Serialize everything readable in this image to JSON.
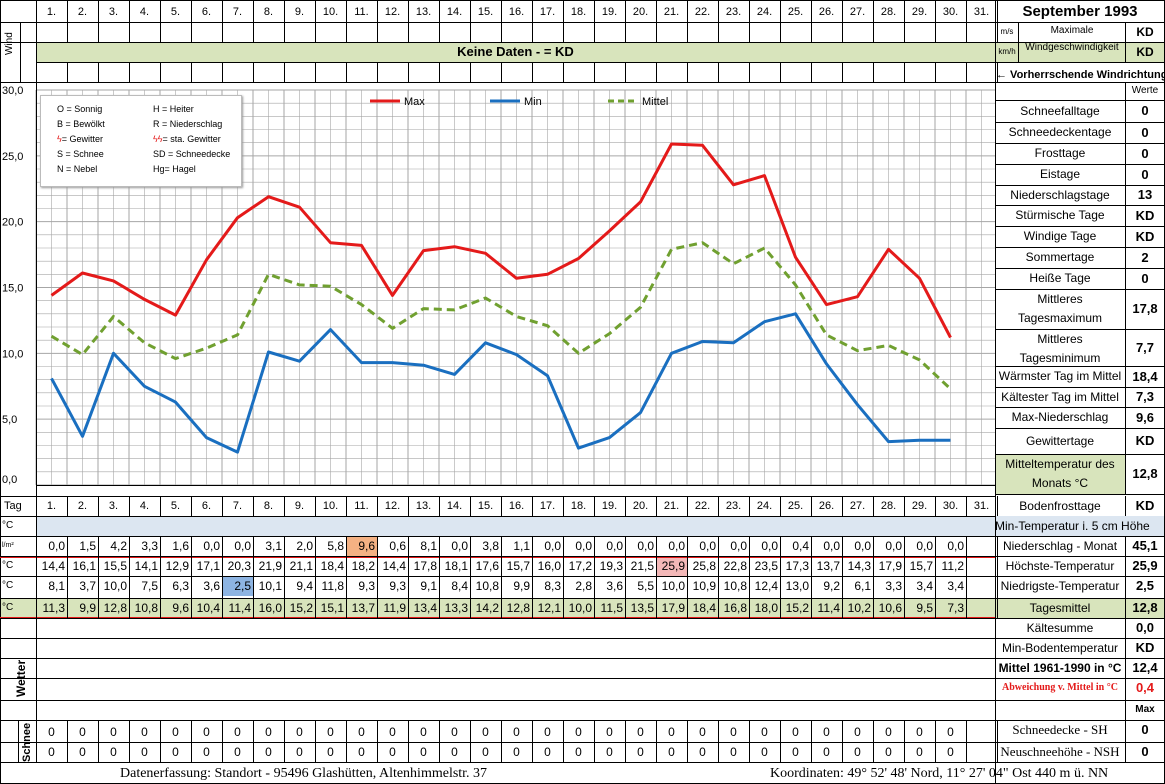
{
  "title": "September 1993",
  "day_header_label": "Tag",
  "days": [
    "1.",
    "2.",
    "3.",
    "4.",
    "5.",
    "6.",
    "7.",
    "8.",
    "9.",
    "10.",
    "11.",
    "12.",
    "13.",
    "14.",
    "15.",
    "16.",
    "17.",
    "18.",
    "19.",
    "20.",
    "21.",
    "22.",
    "23.",
    "24.",
    "25.",
    "26.",
    "27.",
    "28.",
    "29.",
    "30.",
    "31."
  ],
  "wind": {
    "label": "Wind",
    "banner": "Keine Daten -  = KD",
    "units": [
      "m/s",
      "km/h"
    ],
    "max_label_1": "Maximale",
    "max_label_2": "Windgeschwindigkeit",
    "max_values": [
      "KD",
      "KD"
    ],
    "direction_label": "← Vorherrschende Windrichtung"
  },
  "legend": {
    "items": [
      [
        "O = Sonnig",
        "H = Heiter"
      ],
      [
        "B = Bewölkt",
        "R = Niederschlag"
      ],
      [
        "= Gewitter",
        "= sta. Gewitter"
      ],
      [
        "S = Schnee",
        "SD = Schneedecke"
      ],
      [
        "N = Nebel",
        "Hg= Hagel"
      ]
    ],
    "storm_symbol": "ϟ",
    "storm_symbol_double": "ϟϟ"
  },
  "chart_data": {
    "type": "line",
    "x": [
      "1.",
      "2.",
      "3.",
      "4.",
      "5.",
      "6.",
      "7.",
      "8.",
      "9.",
      "10.",
      "11.",
      "12.",
      "13.",
      "14.",
      "15.",
      "16.",
      "17.",
      "18.",
      "19.",
      "20.",
      "21.",
      "22.",
      "23.",
      "24.",
      "25.",
      "26.",
      "27.",
      "28.",
      "29.",
      "30."
    ],
    "ylim": [
      0,
      30
    ],
    "yticks": [
      "0,0",
      "5,0",
      "10,0",
      "15,0",
      "20,0",
      "25,0",
      "30,0"
    ],
    "grid": true,
    "series": [
      {
        "name": "Max",
        "color": "#e41a1a",
        "style": "solid",
        "values": [
          14.4,
          16.1,
          15.5,
          14.1,
          12.9,
          17.1,
          20.3,
          21.9,
          21.1,
          18.4,
          18.2,
          14.4,
          17.8,
          18.1,
          17.6,
          15.7,
          16.0,
          17.2,
          19.3,
          21.5,
          25.9,
          25.8,
          22.8,
          23.5,
          17.3,
          13.7,
          14.3,
          17.9,
          15.7,
          11.2
        ]
      },
      {
        "name": "Min",
        "color": "#1a6fc0",
        "style": "solid",
        "values": [
          8.1,
          3.7,
          10.0,
          7.5,
          6.3,
          3.6,
          2.5,
          10.1,
          9.4,
          11.8,
          9.3,
          9.3,
          9.1,
          8.4,
          10.8,
          9.9,
          8.3,
          2.8,
          3.6,
          5.5,
          10.0,
          10.9,
          10.8,
          12.4,
          13.0,
          9.2,
          6.1,
          3.3,
          3.4,
          3.4
        ]
      },
      {
        "name": "Mittel",
        "color": "#70a030",
        "style": "dashed",
        "values": [
          11.3,
          9.9,
          12.8,
          10.8,
          9.6,
          10.4,
          11.4,
          16.0,
          15.2,
          15.1,
          13.7,
          11.9,
          13.4,
          13.3,
          14.2,
          12.8,
          12.1,
          10.0,
          11.5,
          13.5,
          17.9,
          18.4,
          16.8,
          18.0,
          15.2,
          11.4,
          10.2,
          10.6,
          9.5,
          7.3
        ]
      }
    ]
  },
  "table": {
    "head_units": [
      "°C",
      "l/m²",
      "°C",
      "°C",
      "°C"
    ],
    "precip": [
      "0,0",
      "1,5",
      "4,2",
      "3,3",
      "1,6",
      "0,0",
      "0,0",
      "3,1",
      "2,0",
      "5,8",
      "9,6",
      "0,6",
      "8,1",
      "0,0",
      "3,8",
      "1,1",
      "0,0",
      "0,0",
      "0,0",
      "0,0",
      "0,0",
      "0,0",
      "0,0",
      "0,0",
      "0,4",
      "0,0",
      "0,0",
      "0,0",
      "0,0",
      "0,0"
    ],
    "max": [
      "14,4",
      "16,1",
      "15,5",
      "14,1",
      "12,9",
      "17,1",
      "20,3",
      "21,9",
      "21,1",
      "18,4",
      "18,2",
      "14,4",
      "17,8",
      "18,1",
      "17,6",
      "15,7",
      "16,0",
      "17,2",
      "19,3",
      "21,5",
      "25,9",
      "25,8",
      "22,8",
      "23,5",
      "17,3",
      "13,7",
      "14,3",
      "17,9",
      "15,7",
      "11,2"
    ],
    "min": [
      "8,1",
      "3,7",
      "10,0",
      "7,5",
      "6,3",
      "3,6",
      "2,5",
      "10,1",
      "9,4",
      "11,8",
      "9,3",
      "9,3",
      "9,1",
      "8,4",
      "10,8",
      "9,9",
      "8,3",
      "2,8",
      "3,6",
      "5,5",
      "10,0",
      "10,9",
      "10,8",
      "12,4",
      "13,0",
      "9,2",
      "6,1",
      "3,3",
      "3,4",
      "3,4"
    ],
    "mean": [
      "11,3",
      "9,9",
      "12,8",
      "10,8",
      "9,6",
      "10,4",
      "11,4",
      "16,0",
      "15,2",
      "15,1",
      "13,7",
      "11,9",
      "13,4",
      "13,3",
      "14,2",
      "12,8",
      "12,1",
      "10,0",
      "11,5",
      "13,5",
      "17,9",
      "18,4",
      "16,8",
      "18,0",
      "15,2",
      "11,4",
      "10,2",
      "10,6",
      "9,5",
      "7,3"
    ],
    "wetter_label": "Wetter",
    "schnee_label": "Schnee",
    "snow1": [
      "0",
      "0",
      "0",
      "0",
      "0",
      "0",
      "0",
      "0",
      "0",
      "0",
      "0",
      "0",
      "0",
      "0",
      "0",
      "0",
      "0",
      "0",
      "0",
      "0",
      "0",
      "0",
      "0",
      "0",
      "0",
      "0",
      "0",
      "0",
      "0",
      "0"
    ],
    "snow2": [
      "0",
      "0",
      "0",
      "0",
      "0",
      "0",
      "0",
      "0",
      "0",
      "0",
      "0",
      "0",
      "0",
      "0",
      "0",
      "0",
      "0",
      "0",
      "0",
      "0",
      "0",
      "0",
      "0",
      "0",
      "0",
      "0",
      "0",
      "0",
      "0",
      "0"
    ],
    "highlight_colors": {
      "precip": "#f4b183",
      "max": "#f4b8b8",
      "min": "#8db4e2",
      "mean_row": "#d8e4bc",
      "band": "#dce6f1"
    }
  },
  "stats": {
    "werte_label": "Werte",
    "rows": [
      {
        "label": "Schneefalltage",
        "value": "0"
      },
      {
        "label": "Schneedeckentage",
        "value": "0"
      },
      {
        "label": "Frosttage",
        "value": "0"
      },
      {
        "label": "Eistage",
        "value": "0"
      },
      {
        "label": "Niederschlagstage",
        "value": "13"
      },
      {
        "label": "Stürmische Tage",
        "value": "KD"
      },
      {
        "label": "Windige Tage",
        "value": "KD"
      },
      {
        "label": "Sommertage",
        "value": "2"
      },
      {
        "label": "Heiße Tage",
        "value": "0"
      },
      {
        "label": "Mittleres Tagesmaximum",
        "value": "17,8"
      },
      {
        "label": "Mittleres Tagesminimum",
        "value": "7,7"
      },
      {
        "label": "Wärmster Tag im Mittel",
        "value": "18,4"
      },
      {
        "label": "Kältester Tag im Mittel",
        "value": "7,3"
      },
      {
        "label": "Max-Niederschlag",
        "value": "9,6"
      },
      {
        "label": "Gewittertage",
        "value": "KD"
      },
      {
        "label": "Mitteltemperatur des Monats °C",
        "value": "12,8"
      }
    ],
    "lower": [
      {
        "label": "Bodenfrosttage",
        "value": "KD"
      },
      {
        "label": "Min-Temperatur i. 5 cm Höhe",
        "value": ""
      },
      {
        "label": "Niederschlag - Monat",
        "value": "45,1"
      },
      {
        "label": "Höchste-Temperatur",
        "value": "25,9"
      },
      {
        "label": "Niedrigste-Temperatur",
        "value": "2,5"
      },
      {
        "label": "Tagesmittel",
        "value": "12,8"
      },
      {
        "label": "Kältesumme",
        "value": "0,0"
      },
      {
        "label": "Min-Bodentemperatur",
        "value": "KD"
      },
      {
        "label": "Mittel 1961-1990 in °C",
        "value": "12,4"
      },
      {
        "label": "Abweichung v. Mittel in °C",
        "value": "0,4"
      },
      {
        "label": "",
        "value": "Max"
      },
      {
        "label": "Schneedecke -   SH",
        "value": "0"
      },
      {
        "label": "Neuschneehöhe - NSH",
        "value": "0"
      }
    ]
  },
  "footer": {
    "left": "Datenerfassung:  Standort -  95496  Glashütten, Altenhimmelstr. 37",
    "right": "Koordinaten:  49° 52' 48' Nord,  11° 27' 04\" Ost   440 m ü. NN"
  }
}
